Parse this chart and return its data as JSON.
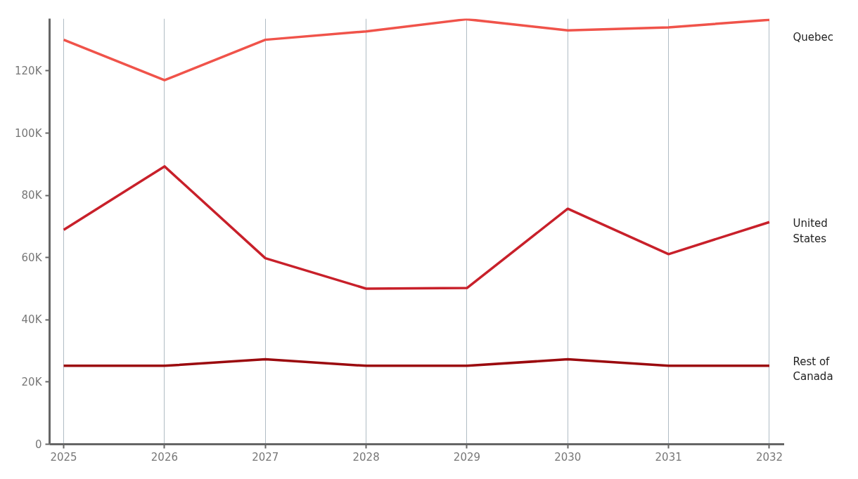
{
  "chart_data": {
    "type": "line",
    "x": [
      2025,
      2026,
      2027,
      2028,
      2029,
      2030,
      2031,
      2032
    ],
    "series": [
      {
        "name": "Quebec",
        "color": "#f0534a",
        "values": [
          130000,
          117000,
          130000,
          132700,
          136600,
          133000,
          134000,
          136400
        ]
      },
      {
        "name": "United States",
        "color": "#c8202a",
        "values": [
          68900,
          89300,
          59800,
          50000,
          50200,
          75700,
          61100,
          71400
        ]
      },
      {
        "name": "Rest of Canada",
        "color": "#9b0a0e",
        "values": [
          25200,
          25200,
          27300,
          25200,
          25200,
          27300,
          25200,
          25200
        ]
      }
    ],
    "xlim": [
      2024.86,
      2032.15
    ],
    "xticks": [
      2025,
      2026,
      2027,
      2028,
      2029,
      2030,
      2031,
      2032
    ],
    "ylim": [
      0,
      136800
    ],
    "yticks": [
      {
        "value": 0,
        "label": "0"
      },
      {
        "value": 20000,
        "label": "20K"
      },
      {
        "value": 40000,
        "label": "40K"
      },
      {
        "value": 60000,
        "label": "60K"
      },
      {
        "value": 80000,
        "label": "80K"
      },
      {
        "value": 100000,
        "label": "100K"
      },
      {
        "value": 120000,
        "label": "120K"
      }
    ],
    "grid": "x",
    "legend": "right",
    "marker": "none",
    "line_style": "solid"
  }
}
